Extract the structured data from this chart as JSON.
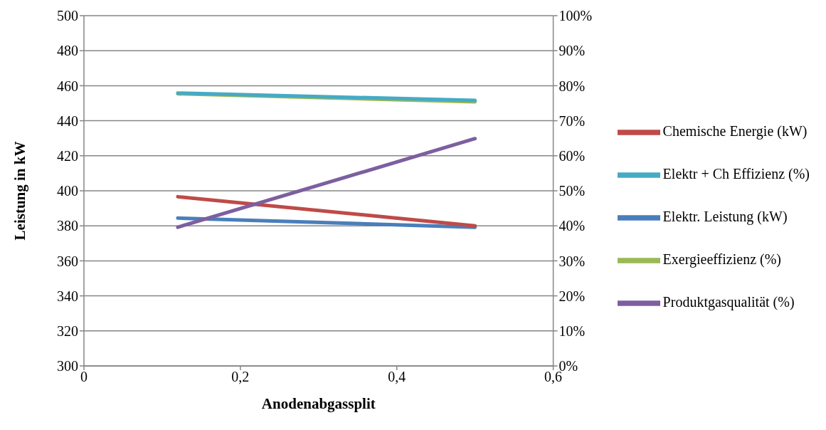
{
  "chart_data": {
    "type": "line",
    "xlabel": "Anodenabgassplit",
    "ylabel": "Leistung in kW",
    "x": [
      0.12,
      0.5
    ],
    "xlim": [
      0,
      0.6
    ],
    "xticks": [
      0,
      {
        "value": 0.2,
        "label": "0,2"
      },
      {
        "value": 0.4,
        "label": "0,4"
      },
      {
        "value": 0.6,
        "label": "0,6"
      }
    ],
    "ylim": [
      300,
      500
    ],
    "yticks": [
      300,
      320,
      340,
      360,
      380,
      400,
      420,
      440,
      460,
      480,
      500
    ],
    "y2lim": [
      0,
      100
    ],
    "y2ticks": [
      {
        "value": 0,
        "label": "0%"
      },
      {
        "value": 10,
        "label": "10%"
      },
      {
        "value": 20,
        "label": "20%"
      },
      {
        "value": 30,
        "label": "30%"
      },
      {
        "value": 40,
        "label": "40%"
      },
      {
        "value": 50,
        "label": "50%"
      },
      {
        "value": 60,
        "label": "60%"
      },
      {
        "value": 70,
        "label": "70%"
      },
      {
        "value": 80,
        "label": "80%"
      },
      {
        "value": 90,
        "label": "90%"
      },
      {
        "value": 100,
        "label": "100%"
      }
    ],
    "grid": "y",
    "legend": "right",
    "marker": "none",
    "line_style": "solid",
    "series": [
      {
        "name": "Elektr. Leistung (kW)",
        "color": "#4a7ebb",
        "values": [
          384.4,
          379.2
        ]
      },
      {
        "name": "Chemische Energie (kW)",
        "color": "#be4b48",
        "values": [
          396.6,
          380
        ]
      },
      {
        "name": "Exergieeffizienz (%)",
        "color": "#98b954",
        "values": [
          77.7,
          75.4
        ],
        "axis": "y2"
      },
      {
        "name": "Produktgasqualität (%)",
        "color": "#7d5fa0",
        "values": [
          39.6,
          64.9
        ],
        "axis": "y2"
      },
      {
        "name": "Elektr + Ch Effizienz (%)",
        "color": "#46aac5",
        "values": [
          77.9,
          75.8
        ],
        "axis": "y2"
      }
    ]
  }
}
